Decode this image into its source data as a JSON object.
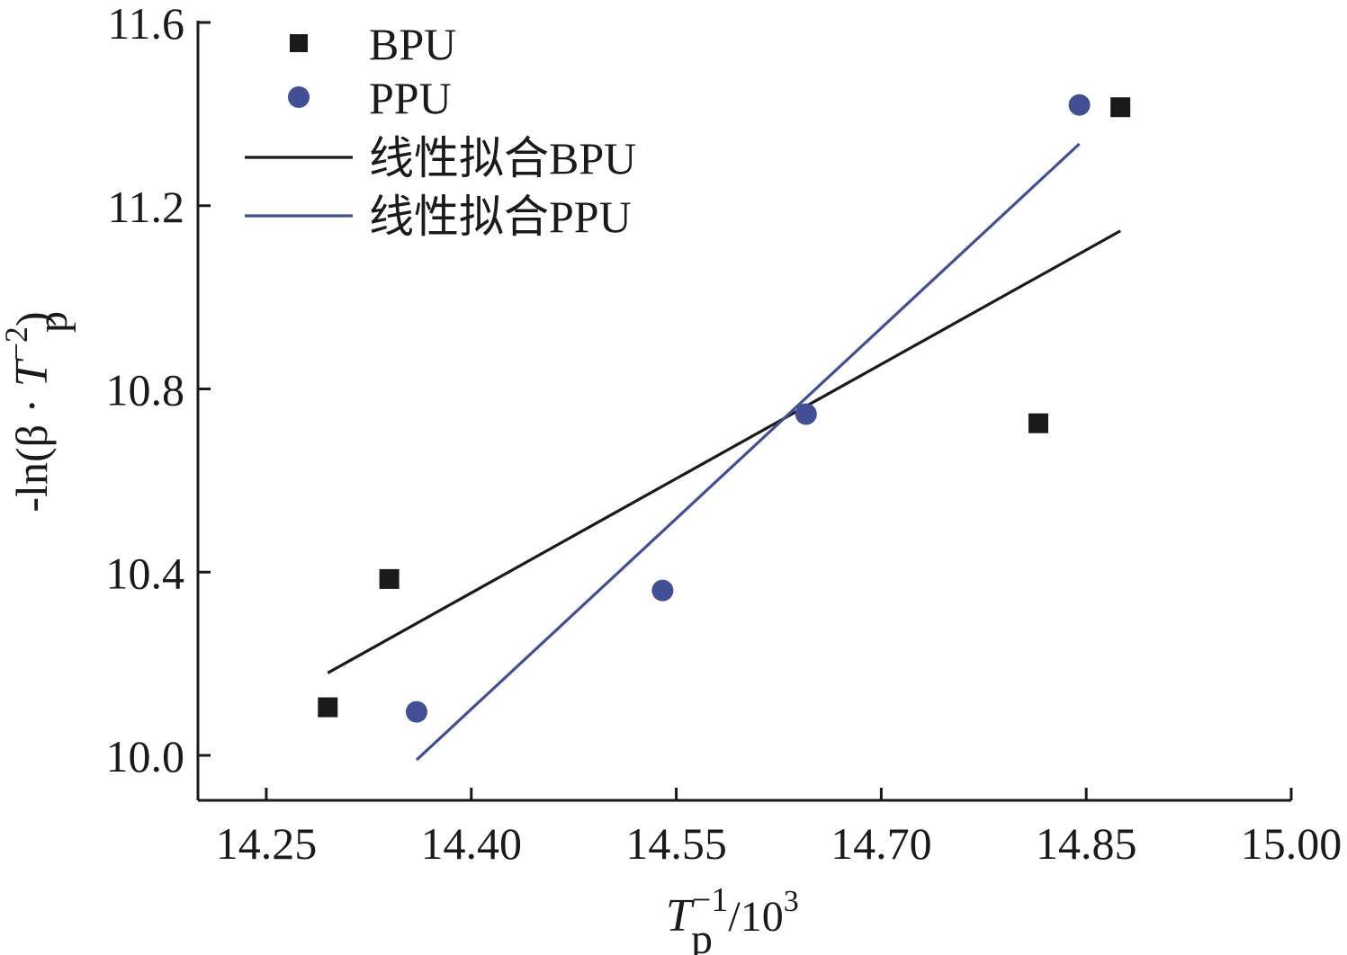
{
  "chart_data": {
    "type": "scatter",
    "title": "",
    "xlabel": {
      "main": "T",
      "sub": "p",
      "sup": "−1",
      "suffix": "/10",
      "suffix_sup": "3"
    },
    "ylabel": {
      "prefix": "-ln(β · ",
      "main": "T",
      "sub": "p",
      "sup": "−2",
      "suffix": ")"
    },
    "xlim": [
      14.2,
      15.0
    ],
    "ylim": [
      9.9,
      11.6
    ],
    "xticks": [
      14.25,
      14.4,
      14.55,
      14.7,
      14.85,
      15.0
    ],
    "xtick_labels": [
      "14.25",
      "14.40",
      "14.55",
      "14.70",
      "14.85",
      "15.00"
    ],
    "yticks": [
      10.0,
      10.4,
      10.8,
      11.2,
      11.6
    ],
    "ytick_labels": [
      "10.0",
      "10.4",
      "10.8",
      "11.2",
      "11.6"
    ],
    "grid": false,
    "legend_position": "top-left",
    "series": [
      {
        "name": "BPU",
        "kind": "scatter",
        "marker": "square",
        "color": "#1a1a1a",
        "x": [
          14.295,
          14.34,
          14.815,
          14.875
        ],
        "y": [
          10.105,
          10.385,
          10.725,
          11.415
        ]
      },
      {
        "name": "PPU",
        "kind": "scatter",
        "marker": "circle",
        "color": "#434f94",
        "x": [
          14.36,
          14.54,
          14.645,
          14.845
        ],
        "y": [
          10.095,
          10.36,
          10.745,
          11.42
        ]
      },
      {
        "name": "线性拟合BPU",
        "kind": "line",
        "color": "#1a1a1a",
        "x": [
          14.295,
          14.875
        ],
        "y": [
          10.18,
          11.145
        ]
      },
      {
        "name": "线性拟合PPU",
        "kind": "line",
        "color": "#434f94",
        "x": [
          14.36,
          14.845
        ],
        "y": [
          9.99,
          11.335
        ]
      }
    ]
  }
}
